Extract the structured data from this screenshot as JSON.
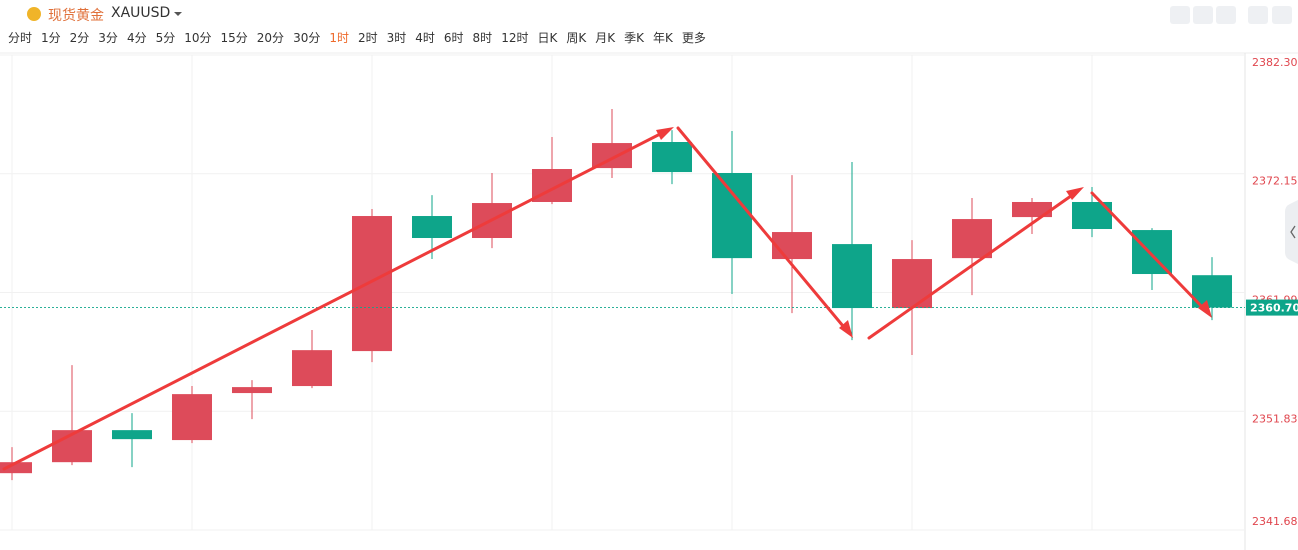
{
  "header": {
    "name": "现货黄金",
    "symbol": "XAUUSD"
  },
  "intervals": [
    "分时",
    "1分",
    "2分",
    "3分",
    "4分",
    "5分",
    "10分",
    "15分",
    "20分",
    "30分",
    "1时",
    "2时",
    "3时",
    "4时",
    "6时",
    "8时",
    "12时",
    "日K",
    "周K",
    "月K",
    "季K",
    "年K",
    "更多"
  ],
  "active_interval": 10,
  "chart_data": {
    "type": "candlestick",
    "open": [
      2346.54,
      2347.48,
      2350.22,
      2349.37,
      2353.39,
      2353.99,
      2356.98,
      2368.53,
      2366.65,
      2369.73,
      2372.63,
      2374.86,
      2372.21,
      2364.85,
      2366.13,
      2360.66,
      2364.93,
      2368.44,
      2369.73,
      2367.33,
      2363.47
    ],
    "high": [
      2348.77,
      2355.78,
      2351.68,
      2353.99,
      2354.5,
      2358.78,
      2369.13,
      2370.32,
      2372.21,
      2375.29,
      2377.68,
      2375.88,
      2375.8,
      2372.03,
      2373.15,
      2366.47,
      2370.07,
      2370.07,
      2371.01,
      2367.5,
      2365.02
    ],
    "low": [
      2345.94,
      2347.23,
      2347.06,
      2349.11,
      2351.16,
      2353.81,
      2356.04,
      2364.85,
      2365.79,
      2369.55,
      2371.78,
      2371.26,
      2361.86,
      2360.23,
      2357.92,
      2356.64,
      2361.77,
      2366.99,
      2366.73,
      2362.2,
      2359.63
    ],
    "close": [
      2347.48,
      2350.22,
      2349.45,
      2353.3,
      2353.9,
      2357.06,
      2368.53,
      2366.65,
      2369.64,
      2372.55,
      2374.77,
      2372.29,
      2364.93,
      2367.16,
      2360.66,
      2364.85,
      2368.27,
      2369.73,
      2367.42,
      2363.57,
      2360.7
    ],
    "up_color": "#dd4b5a",
    "down_color": "#0ea58a",
    "ylim": [
      2341.68,
      2382.3
    ],
    "yticks": [
      {
        "value": 2382.3,
        "label": "2382.30"
      },
      2372.15,
      2361.99,
      2351.83,
      2341.68
    ],
    "last_price": {
      "value": 2360.7,
      "label": "2360.70"
    },
    "grid": true
  }
}
